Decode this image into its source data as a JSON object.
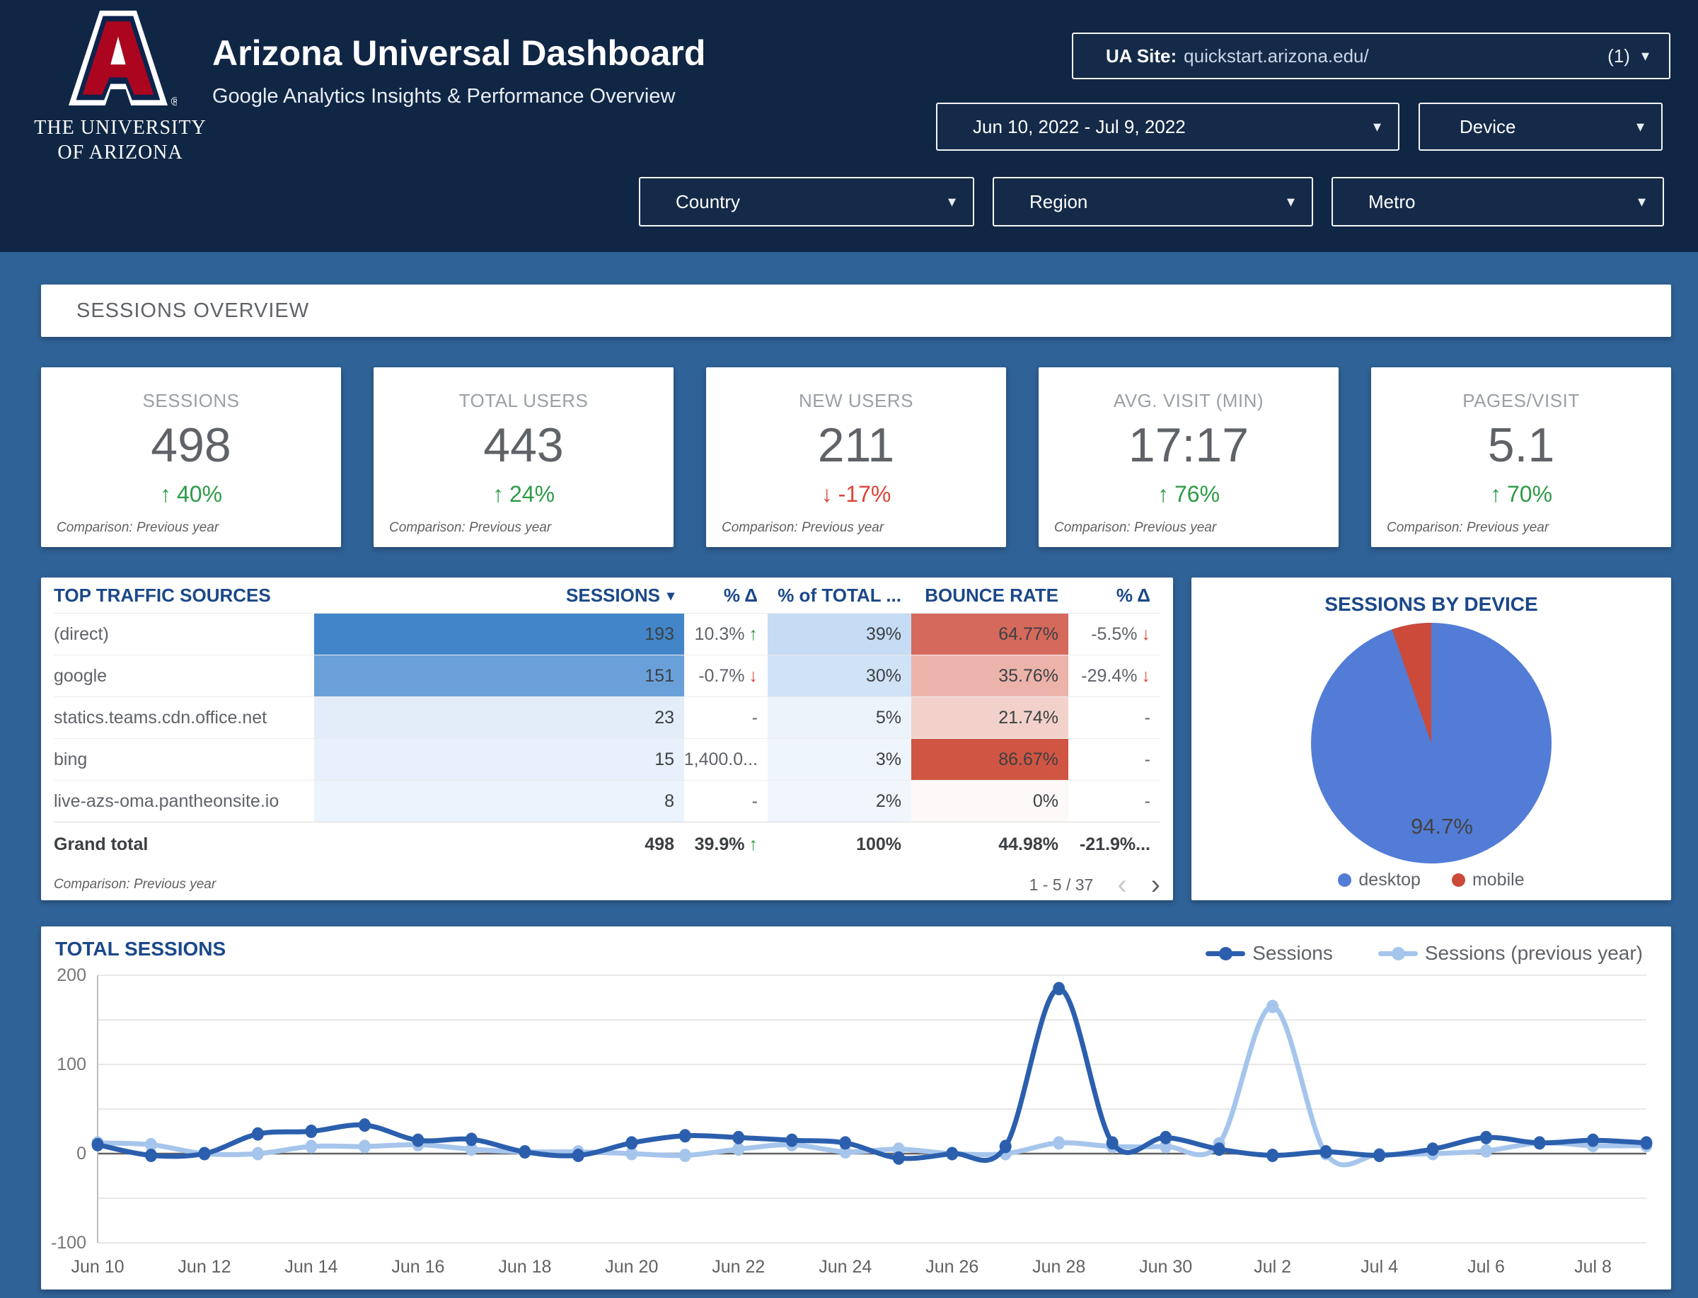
{
  "theme": {
    "topbar_bg": "#102645",
    "body_bg": "#2f6296",
    "accent_navy": "#1b4889",
    "green": "#2e9b47",
    "red": "#db4437",
    "icons": {
      "up_arrow": "↑",
      "down_arrow": "↓",
      "caret": "▾",
      "prev": "‹",
      "next": "›"
    }
  },
  "header": {
    "title": "Arizona Universal Dashboard",
    "subtitle": "Google Analytics Insights & Performance Overview",
    "logo_line1": "THE UNIVERSITY",
    "logo_line2": "OF ARIZONA",
    "ua_site_label": "UA Site:",
    "ua_site_value": "quickstart.arizona.edu/",
    "ua_site_count": "(1)"
  },
  "filters": {
    "date_range": "Jun 10, 2022 - Jul 9, 2022",
    "device": "Device",
    "country": "Country",
    "region": "Region",
    "metro": "Metro"
  },
  "section_title": "SESSIONS OVERVIEW",
  "scorecards": [
    {
      "label": "SESSIONS",
      "value": "498",
      "delta": "40%",
      "direction": "up",
      "comparison": "Comparison: Previous year"
    },
    {
      "label": "TOTAL USERS",
      "value": "443",
      "delta": "24%",
      "direction": "up",
      "comparison": "Comparison: Previous year"
    },
    {
      "label": "NEW USERS",
      "value": "211",
      "delta": "-17%",
      "direction": "down",
      "comparison": "Comparison: Previous year"
    },
    {
      "label": "AVG. VISIT (MIN)",
      "value": "17:17",
      "delta": "76%",
      "direction": "up",
      "comparison": "Comparison: Previous year"
    },
    {
      "label": "PAGES/VISIT",
      "value": "5.1",
      "delta": "70%",
      "direction": "up",
      "comparison": "Comparison: Previous year"
    }
  ],
  "traffic_table": {
    "title": "TOP TRAFFIC SOURCES",
    "columns": [
      "SESSIONS",
      "% Δ",
      "% of TOTAL ...",
      "BOUNCE RATE",
      "% Δ"
    ],
    "rows": [
      {
        "source": "(direct)",
        "sessions": "193",
        "sessions_bg": "#4285c8",
        "delta": "10.3%",
        "delta_dir": "up",
        "pct_total": "39%",
        "pct_bg": "#c6dcf4",
        "bounce": "64.77%",
        "bounce_bg": "#d5695b",
        "delta2": "-5.5%",
        "delta2_dir": "down"
      },
      {
        "source": "google",
        "sessions": "151",
        "sessions_bg": "#6aa0da",
        "delta": "-0.7%",
        "delta_dir": "down",
        "pct_total": "30%",
        "pct_bg": "#d0e2f6",
        "bounce": "35.76%",
        "bounce_bg": "#ecb3ab",
        "delta2": "-29.4%",
        "delta2_dir": "down"
      },
      {
        "source": "statics.teams.cdn.office.net",
        "sessions": "23",
        "sessions_bg": "#e2edf9",
        "delta": "-",
        "delta_dir": "none",
        "pct_total": "5%",
        "pct_bg": "#ecf4fb",
        "bounce": "21.74%",
        "bounce_bg": "#f3d1cb",
        "delta2": "-",
        "delta2_dir": "none"
      },
      {
        "source": "bing",
        "sessions": "15",
        "sessions_bg": "#e7f0fb",
        "delta": "1,400.0...",
        "delta_dir": "none",
        "pct_total": "3%",
        "pct_bg": "#eff5fc",
        "bounce": "86.67%",
        "bounce_bg": "#d05542",
        "delta2": "-",
        "delta2_dir": "none"
      },
      {
        "source": "live-azs-oma.pantheonsite.io",
        "sessions": "8",
        "sessions_bg": "#ebf3fc",
        "delta": "-",
        "delta_dir": "none",
        "pct_total": "2%",
        "pct_bg": "#f1f6fd",
        "bounce": "0%",
        "bounce_bg": "#fdf9f8",
        "delta2": "-",
        "delta2_dir": "none"
      }
    ],
    "grand_total": {
      "label": "Grand total",
      "sessions": "498",
      "delta": "39.9%",
      "delta_dir": "up",
      "pct_total": "100%",
      "bounce": "44.98%",
      "delta2": "-21.9%...",
      "delta2_dir": "none"
    },
    "footer": {
      "comparison": "Comparison: Previous year",
      "pagination": "1 - 5 / 37"
    }
  },
  "pie": {
    "title": "SESSIONS BY DEVICE",
    "label": "94.7%",
    "slices": [
      {
        "name": "desktop",
        "value": 94.7,
        "color": "#527cd6"
      },
      {
        "name": "mobile",
        "value": 5.3,
        "color": "#cb4a39"
      }
    ]
  },
  "chart_data": [
    {
      "type": "line",
      "title": "TOTAL SESSIONS",
      "x": [
        "Jun 10",
        "Jun 11",
        "Jun 12",
        "Jun 13",
        "Jun 14",
        "Jun 15",
        "Jun 16",
        "Jun 17",
        "Jun 18",
        "Jun 19",
        "Jun 20",
        "Jun 21",
        "Jun 22",
        "Jun 23",
        "Jun 24",
        "Jun 25",
        "Jun 26",
        "Jun 27",
        "Jun 28",
        "Jun 29",
        "Jun 30",
        "Jul 1",
        "Jul 2",
        "Jul 3",
        "Jul 4",
        "Jul 5",
        "Jul 6",
        "Jul 7",
        "Jul 8",
        "Jul 9"
      ],
      "series": [
        {
          "name": "Sessions",
          "color": "#2b5fae",
          "values": [
            10,
            -2,
            0,
            22,
            25,
            32,
            15,
            16,
            2,
            -2,
            12,
            20,
            18,
            15,
            12,
            -5,
            0,
            8,
            185,
            12,
            18,
            5,
            -2,
            2,
            -2,
            5,
            18,
            12,
            15,
            12
          ]
        },
        {
          "name": "Sessions (previous year)",
          "color": "#a6c5ec",
          "values": [
            12,
            10,
            0,
            0,
            8,
            8,
            10,
            5,
            2,
            2,
            0,
            -2,
            5,
            10,
            2,
            5,
            0,
            0,
            12,
            8,
            8,
            11,
            165,
            0,
            -1,
            0,
            3,
            12,
            9,
            9
          ]
        }
      ],
      "ylim": [
        -100,
        200
      ],
      "yticks": [
        200,
        100,
        0,
        -100
      ],
      "grid_step": 50,
      "legend_position": "top-right"
    },
    {
      "type": "pie",
      "title": "SESSIONS BY DEVICE",
      "categories": [
        "desktop",
        "mobile"
      ],
      "values": [
        94.7,
        5.3
      ],
      "data_label": "94.7%",
      "legend_position": "bottom"
    }
  ]
}
